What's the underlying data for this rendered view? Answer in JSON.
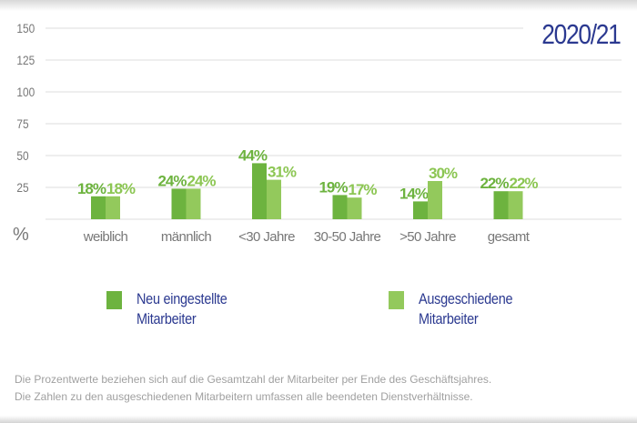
{
  "chart_data": {
    "type": "bar",
    "title": "2020/21",
    "ylabel": "%",
    "ylim": [
      0,
      150
    ],
    "yticks": [
      25,
      50,
      75,
      100,
      125,
      150
    ],
    "grid": true,
    "legend_position": "bottom",
    "categories": [
      "weiblich",
      "männlich",
      "<30 Jahre",
      "30-50 Jahre",
      ">50 Jahre",
      "gesamt"
    ],
    "series": [
      {
        "name": "Neu eingestellte Mitarbeiter",
        "values": [
          18,
          24,
          44,
          19,
          14,
          22
        ],
        "color": "#6db33f"
      },
      {
        "name": "Ausgeschiedene Mitarbeiter",
        "values": [
          18,
          24,
          31,
          17,
          30,
          22
        ],
        "color": "#93c95c"
      }
    ],
    "data_label_suffix": "%"
  },
  "legend": [
    {
      "line1": "Neu eingestellte",
      "line2": "Mitarbeiter"
    },
    {
      "line1": "Ausgeschiedene",
      "line2": "Mitarbeiter"
    }
  ],
  "notes": [
    "Die Prozentwerte beziehen sich auf die Gesamtzahl der Mitarbeiter per Ende des Geschäftsjahres.",
    "Die Zahlen zu den ausgeschiedenen Mitarbeitern umfassen alle beendeten Dienstverhältnisse."
  ]
}
